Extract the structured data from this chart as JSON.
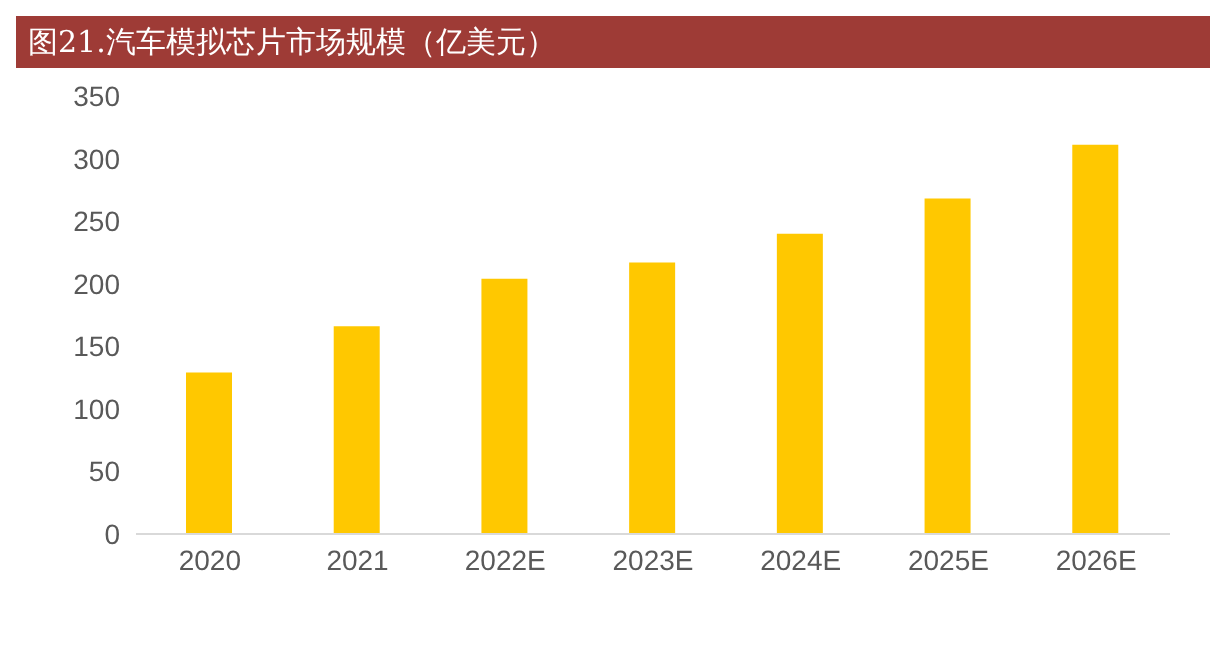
{
  "chart_data": {
    "type": "bar",
    "title": "图21.汽车模拟芯片市场规模（亿美元）",
    "categories": [
      "2020",
      "2021",
      "2022E",
      "2023E",
      "2024E",
      "2025E",
      "2026E"
    ],
    "values": [
      129,
      166,
      204,
      217,
      240,
      268,
      311
    ],
    "color": "#ffc800",
    "ylim": [
      0,
      350
    ],
    "yticks": [
      0,
      50,
      100,
      150,
      200,
      250,
      300,
      350
    ],
    "grid": false
  }
}
